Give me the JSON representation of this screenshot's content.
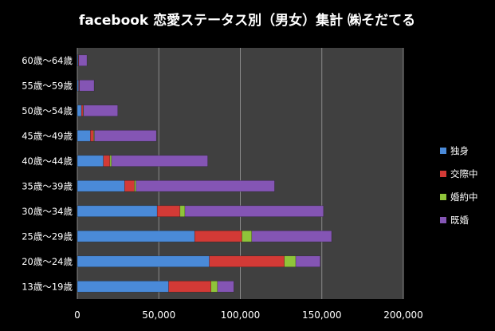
{
  "chart_data": {
    "type": "bar",
    "orientation": "horizontal",
    "stacked": true,
    "title": "facebook 恋愛ステータス別（男女）集計 ㈱そだてる",
    "categories": [
      "13歳～19歳",
      "20歳～24歳",
      "25歳～29歳",
      "30歳～34歳",
      "35歳～39歳",
      "40歳～44歳",
      "45歳～49歳",
      "50歳～54歳",
      "55歳～59歳",
      "60歳～64歳"
    ],
    "series": [
      {
        "name": "独身",
        "color": "#4a8ad8",
        "values": [
          56000,
          81000,
          72000,
          49000,
          29000,
          16000,
          8000,
          2500,
          800,
          500
        ]
      },
      {
        "name": "交際中",
        "color": "#d33a36",
        "values": [
          26000,
          46000,
          29000,
          14000,
          6000,
          4000,
          2000,
          1000,
          400,
          300
        ]
      },
      {
        "name": "婚約中",
        "color": "#8fc43a",
        "values": [
          4000,
          7000,
          6000,
          3000,
          1000,
          1000,
          500,
          300,
          100,
          100
        ]
      },
      {
        "name": "既婚",
        "color": "#8455b4",
        "values": [
          10000,
          15000,
          49000,
          85000,
          85000,
          59000,
          38000,
          21000,
          9000,
          5000
        ]
      }
    ],
    "xticks": [
      "0",
      "50,000",
      "100,000",
      "150,000",
      "200,000"
    ],
    "xlim": [
      0,
      200000
    ],
    "grid": true,
    "legend_position": "right"
  }
}
